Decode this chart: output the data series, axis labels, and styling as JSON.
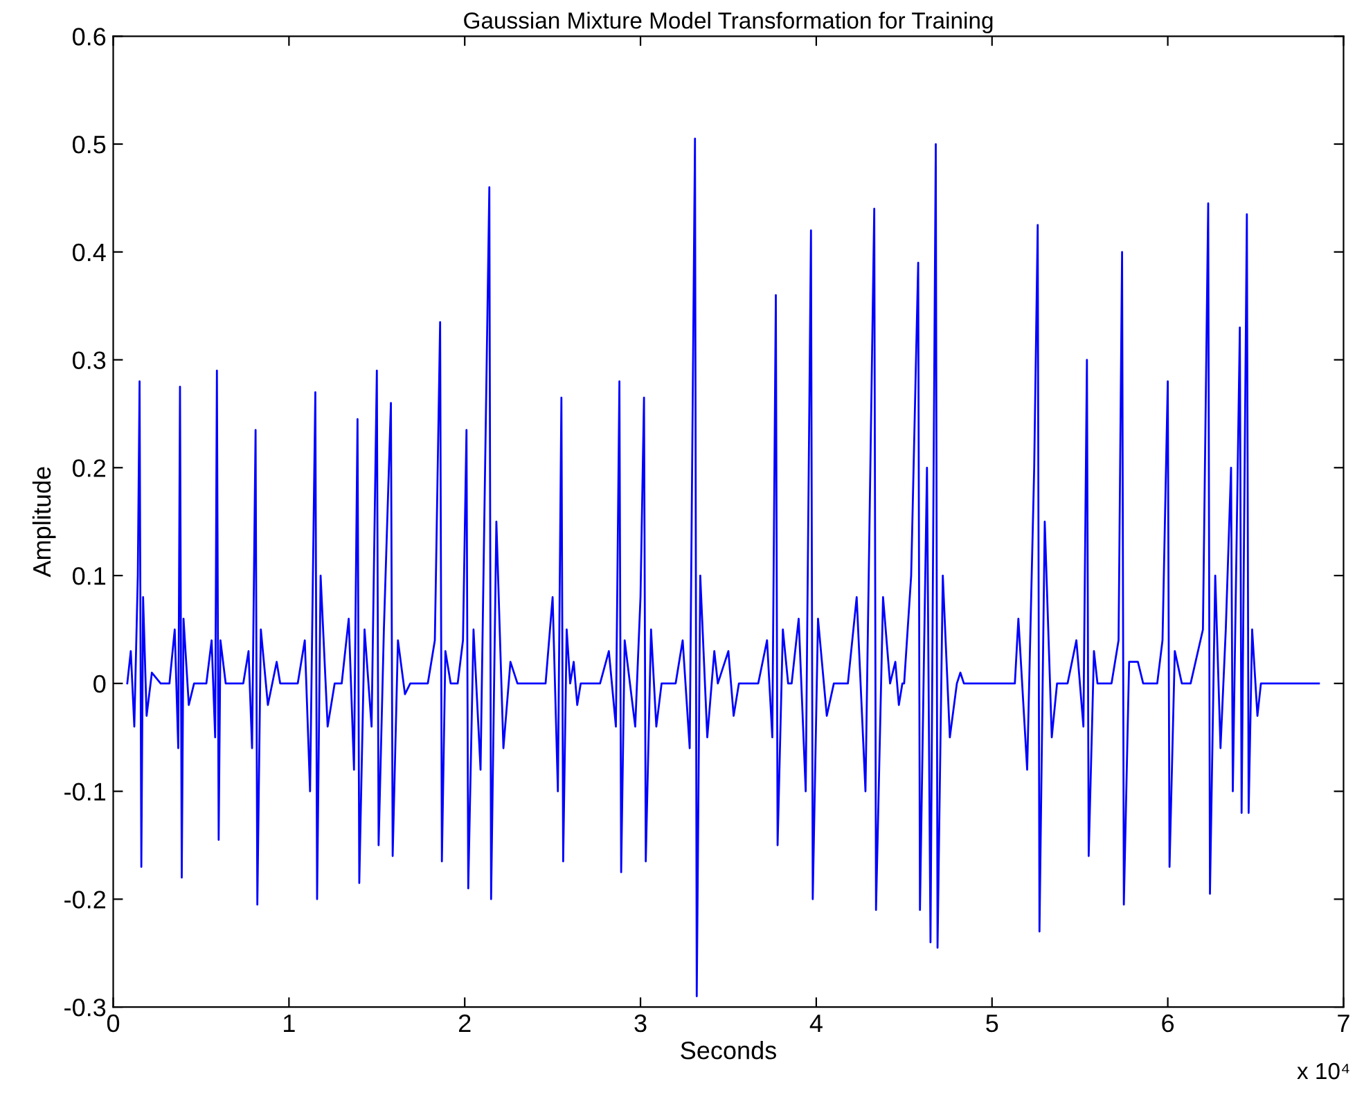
{
  "chart_data": {
    "type": "line",
    "title": "Gaussian Mixture Model Transformation for Training",
    "xlabel": "Seconds",
    "ylabel": "Amplitude",
    "annotations": [
      "x 10⁴"
    ],
    "xlim": [
      0,
      7
    ],
    "xticks": [
      0,
      1,
      2,
      3,
      4,
      5,
      6,
      7
    ],
    "ylim": [
      -0.3,
      0.6
    ],
    "yticks": [
      -0.3,
      -0.2,
      -0.1,
      0,
      0.1,
      0.2,
      0.3,
      0.4,
      0.5,
      0.6
    ],
    "grid": false,
    "marker": "none",
    "line_style": "solid",
    "series": [
      {
        "color": "#0000ff",
        "x": [
          0.08,
          0.1,
          0.12,
          0.14,
          0.15,
          0.16,
          0.17,
          0.19,
          0.22,
          0.27,
          0.32,
          0.35,
          0.37,
          0.38,
          0.39,
          0.4,
          0.43,
          0.46,
          0.53,
          0.56,
          0.58,
          0.59,
          0.6,
          0.61,
          0.64,
          0.74,
          0.77,
          0.79,
          0.81,
          0.82,
          0.84,
          0.88,
          0.93,
          0.95,
          1.05,
          1.09,
          1.12,
          1.15,
          1.16,
          1.18,
          1.22,
          1.26,
          1.3,
          1.34,
          1.37,
          1.39,
          1.4,
          1.43,
          1.47,
          1.5,
          1.51,
          1.54,
          1.58,
          1.59,
          1.62,
          1.66,
          1.69,
          1.79,
          1.83,
          1.86,
          1.87,
          1.89,
          1.92,
          1.96,
          1.99,
          2.01,
          2.02,
          2.05,
          2.09,
          2.14,
          2.15,
          2.18,
          2.22,
          2.26,
          2.3,
          2.46,
          2.5,
          2.53,
          2.55,
          2.56,
          2.58,
          2.6,
          2.62,
          2.64,
          2.66,
          2.77,
          2.82,
          2.86,
          2.88,
          2.89,
          2.91,
          2.97,
          3.0,
          3.02,
          3.03,
          3.06,
          3.09,
          3.12,
          3.2,
          3.24,
          3.28,
          3.31,
          3.32,
          3.34,
          3.38,
          3.42,
          3.44,
          3.5,
          3.53,
          3.56,
          3.67,
          3.72,
          3.75,
          3.77,
          3.78,
          3.81,
          3.84,
          3.86,
          3.9,
          3.94,
          3.97,
          3.98,
          4.01,
          4.06,
          4.1,
          4.18,
          4.23,
          4.28,
          4.33,
          4.34,
          4.38,
          4.42,
          4.45,
          4.47,
          4.49,
          4.5,
          4.54,
          4.58,
          4.59,
          4.63,
          4.65,
          4.68,
          4.69,
          4.72,
          4.76,
          4.8,
          4.82,
          4.84,
          5.13,
          5.15,
          5.2,
          5.24,
          5.26,
          5.27,
          5.3,
          5.34,
          5.37,
          5.43,
          5.48,
          5.52,
          5.54,
          5.55,
          5.58,
          5.6,
          5.68,
          5.72,
          5.74,
          5.75,
          5.78,
          5.83,
          5.86,
          5.94,
          5.97,
          6.0,
          6.01,
          6.04,
          6.08,
          6.13,
          6.2,
          6.23,
          6.24,
          6.27,
          6.3,
          6.33,
          6.36,
          6.37,
          6.41,
          6.42,
          6.45,
          6.46,
          6.48,
          6.51,
          6.53,
          6.86
        ],
        "values": [
          0,
          0.03,
          -0.04,
          0.1,
          0.28,
          -0.17,
          0.08,
          -0.03,
          0.01,
          0,
          0,
          0.05,
          -0.06,
          0.275,
          -0.18,
          0.06,
          -0.02,
          0,
          0,
          0.04,
          -0.05,
          0.29,
          -0.145,
          0.04,
          0,
          0,
          0.03,
          -0.06,
          0.235,
          -0.205,
          0.05,
          -0.02,
          0.02,
          0,
          0,
          0.04,
          -0.1,
          0.27,
          -0.2,
          0.1,
          -0.04,
          0,
          0,
          0.06,
          -0.08,
          0.245,
          -0.185,
          0.05,
          -0.04,
          0.29,
          -0.15,
          0.05,
          0.26,
          -0.16,
          0.04,
          -0.01,
          0,
          0,
          0.04,
          0.335,
          -0.165,
          0.03,
          0,
          0,
          0.04,
          0.235,
          -0.19,
          0.05,
          -0.08,
          0.46,
          -0.2,
          0.15,
          -0.06,
          0.02,
          0,
          0,
          0.08,
          -0.1,
          0.265,
          -0.165,
          0.05,
          0,
          0.02,
          -0.02,
          0,
          0,
          0.03,
          -0.04,
          0.28,
          -0.175,
          0.04,
          -0.04,
          0.08,
          0.265,
          -0.165,
          0.05,
          -0.04,
          0,
          0,
          0.04,
          -0.06,
          0.505,
          -0.29,
          0.1,
          -0.05,
          0.03,
          0,
          0.03,
          -0.03,
          0,
          0,
          0.04,
          -0.05,
          0.36,
          -0.15,
          0.05,
          0,
          0,
          0.06,
          -0.1,
          0.42,
          -0.2,
          0.06,
          -0.03,
          0,
          0,
          0.08,
          -0.1,
          0.44,
          -0.21,
          0.08,
          0,
          0.02,
          -0.02,
          0,
          0,
          0.1,
          0.39,
          -0.21,
          0.2,
          -0.24,
          0.5,
          -0.245,
          0.1,
          -0.05,
          0,
          0.01,
          0,
          0,
          0.06,
          -0.08,
          0.2,
          0.425,
          -0.23,
          0.15,
          -0.05,
          0,
          0,
          0.04,
          -0.04,
          0.3,
          -0.16,
          0.03,
          0,
          0,
          0.04,
          0.4,
          -0.205,
          0.02,
          0.02,
          0,
          0,
          0.04,
          0.28,
          -0.17,
          0.03,
          0,
          0,
          0.05,
          0.445,
          -0.195,
          0.1,
          -0.06,
          0.05,
          0.2,
          -0.1,
          0.33,
          -0.12,
          0.435,
          -0.12,
          0.05,
          -0.03,
          0,
          0
        ]
      }
    ]
  }
}
